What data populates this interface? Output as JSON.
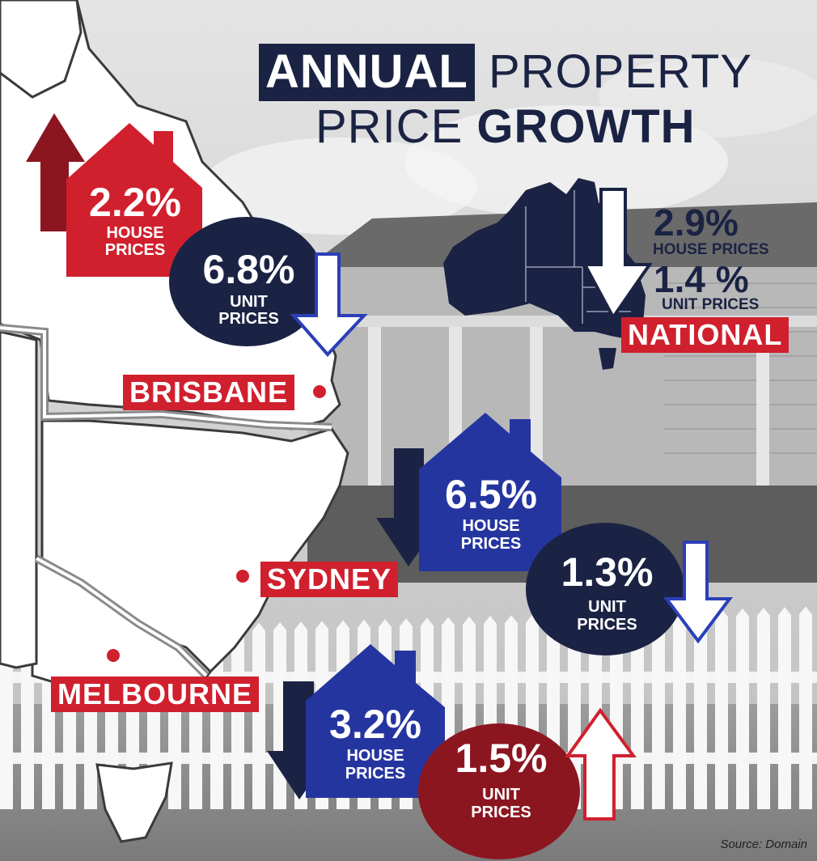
{
  "title": {
    "line1_boxed": "ANNUAL",
    "line1_rest": "PROPERTY",
    "line2_rest": "PRICE",
    "line2_bold": "GROWTH"
  },
  "cities": {
    "brisbane": {
      "name": "BRISBANE",
      "house_pct": "2.2%",
      "house_label_1": "HOUSE",
      "house_label_2": "PRICES",
      "house_trend": "up",
      "unit_pct": "6.8%",
      "unit_label_1": "UNIT",
      "unit_label_2": "PRICES",
      "unit_trend": "down"
    },
    "sydney": {
      "name": "SYDNEY",
      "house_pct": "6.5%",
      "house_label_1": "HOUSE",
      "house_label_2": "PRICES",
      "house_trend": "down",
      "unit_pct": "1.3%",
      "unit_label_1": "UNIT",
      "unit_label_2": "PRICES",
      "unit_trend": "down"
    },
    "melbourne": {
      "name": "MELBOURNE",
      "house_pct": "3.2%",
      "house_label_1": "HOUSE",
      "house_label_2": "PRICES",
      "house_trend": "down",
      "unit_pct": "1.5%",
      "unit_label_1": "UNIT",
      "unit_label_2": "PRICES",
      "unit_trend": "up"
    }
  },
  "national": {
    "name": "NATIONAL",
    "house_pct": "2.9%",
    "house_label": "HOUSE PRICES",
    "unit_pct": "1.4 %",
    "unit_label": "UNIT PRICES",
    "trend": "down"
  },
  "source": "Source: Domain",
  "colors": {
    "navy": "#1b2344",
    "red": "#d0202e",
    "dark_red": "#8b1620",
    "blue": "#2535a0",
    "outline_blue": "#2a3fb8"
  }
}
